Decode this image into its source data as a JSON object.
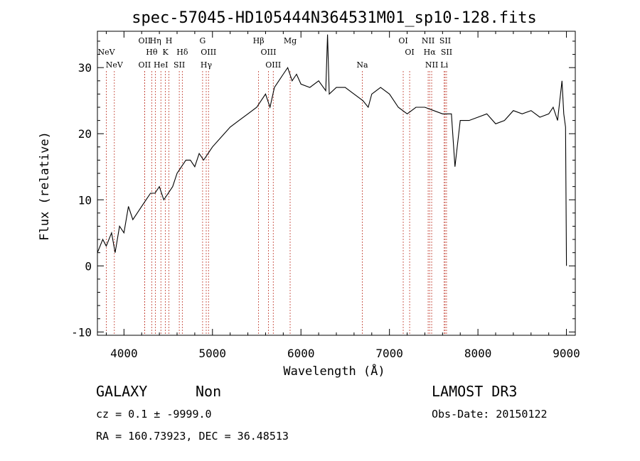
{
  "chart_data": {
    "type": "line",
    "title": "spec-57045-HD105444N364531M01_sp10-128.fits",
    "xlabel": "Wavelength (Å)",
    "ylabel": "Flux (relative)",
    "xlim": [
      3700,
      9100
    ],
    "ylim": [
      -10.5,
      35.5
    ],
    "xticks": [
      4000,
      5000,
      6000,
      7000,
      8000,
      9000
    ],
    "yticks": [
      -10,
      0,
      10,
      20,
      30
    ],
    "grid": false,
    "series": [
      {
        "x": [
          3700,
          3760,
          3800,
          3860,
          3900,
          3950,
          4000,
          4050,
          4100,
          4150,
          4200,
          4250,
          4300,
          4350,
          4400,
          4450,
          4500,
          4550,
          4600,
          4650,
          4700,
          4750,
          4800,
          4850,
          4900,
          4950,
          5000,
          5100,
          5200,
          5300,
          5400,
          5500,
          5550,
          5600,
          5650,
          5700,
          5750,
          5800,
          5850,
          5900,
          5950,
          6000,
          6100,
          6200,
          6280,
          6300,
          6320,
          6400,
          6500,
          6600,
          6700,
          6760,
          6800,
          6900,
          7000,
          7100,
          7200,
          7300,
          7400,
          7500,
          7600,
          7700,
          7740,
          7800,
          7900,
          8000,
          8100,
          8200,
          8300,
          8400,
          8500,
          8600,
          8700,
          8800,
          8850,
          8900,
          8950,
          8970,
          8990,
          9000
        ],
        "values": [
          2,
          4,
          3,
          5,
          2,
          6,
          5,
          9,
          7,
          8,
          9,
          10,
          11,
          11,
          12,
          10,
          11,
          12,
          14,
          15,
          16,
          16,
          15,
          17,
          16,
          17,
          18,
          19.5,
          21,
          22,
          23,
          24,
          25,
          26,
          24,
          27,
          28,
          29,
          30,
          28,
          29,
          27.5,
          27,
          28,
          26.5,
          35,
          26,
          27,
          27,
          26,
          25,
          24,
          26,
          27,
          26,
          24,
          23,
          24,
          24,
          23.5,
          23,
          23,
          15,
          22,
          22,
          22.5,
          23,
          21.5,
          22,
          23.5,
          23,
          23.5,
          22.5,
          23,
          24,
          22,
          28,
          23,
          21,
          0
        ]
      }
    ],
    "lines": [
      {
        "label": "NeV",
        "x": 3426,
        "row": 2
      },
      {
        "label": "NeV",
        "x": 3346,
        "row": 1
      },
      {
        "label": "OII",
        "x": 3727,
        "row": 0
      },
      {
        "label": "Hη",
        "x": 3835,
        "row": 0
      },
      {
        "label": "H",
        "x": 3969,
        "row": 0
      },
      {
        "label": "Hθ",
        "x": 3798,
        "row": 1
      },
      {
        "label": "K",
        "x": 3934,
        "row": 1
      },
      {
        "label": "Hδ",
        "x": 4102,
        "row": 1
      },
      {
        "label": "OII",
        "x": 3727,
        "row": 2
      },
      {
        "label": "HeI",
        "x": 3889,
        "row": 2
      },
      {
        "label": "SII",
        "x": 4072,
        "row": 2
      },
      {
        "label": "G",
        "x": 4304,
        "row": 0
      },
      {
        "label": "OIII",
        "x": 4363,
        "row": 1
      },
      {
        "label": "Hγ",
        "x": 4340,
        "row": 2
      },
      {
        "label": "Hβ",
        "x": 4861,
        "row": 0
      },
      {
        "label": "Mg",
        "x": 5175,
        "row": 0
      },
      {
        "label": "OIII",
        "x": 4959,
        "row": 1
      },
      {
        "label": "OIII",
        "x": 5007,
        "row": 2
      },
      {
        "label": "Na",
        "x": 5893,
        "row": 2
      },
      {
        "label": "OI",
        "x": 6300,
        "row": 0
      },
      {
        "label": "OI",
        "x": 6364,
        "row": 1
      },
      {
        "label": "NII",
        "x": 6548,
        "row": 0
      },
      {
        "label": "SII",
        "x": 6717,
        "row": 0
      },
      {
        "label": "Hα",
        "x": 6563,
        "row": 1
      },
      {
        "label": "SII",
        "x": 6731,
        "row": 1
      },
      {
        "label": "NII",
        "x": 6583,
        "row": 2
      },
      {
        "label": "Li",
        "x": 6708,
        "row": 2
      }
    ]
  },
  "info": {
    "class": "GALAXY",
    "subclass": "Non",
    "survey": "LAMOST DR3",
    "cz_line": "cz = 0.1 ± -9999.0",
    "obs_date": "Obs-Date: 20150122",
    "radec": "RA = 160.73923, DEC =  36.48513"
  }
}
